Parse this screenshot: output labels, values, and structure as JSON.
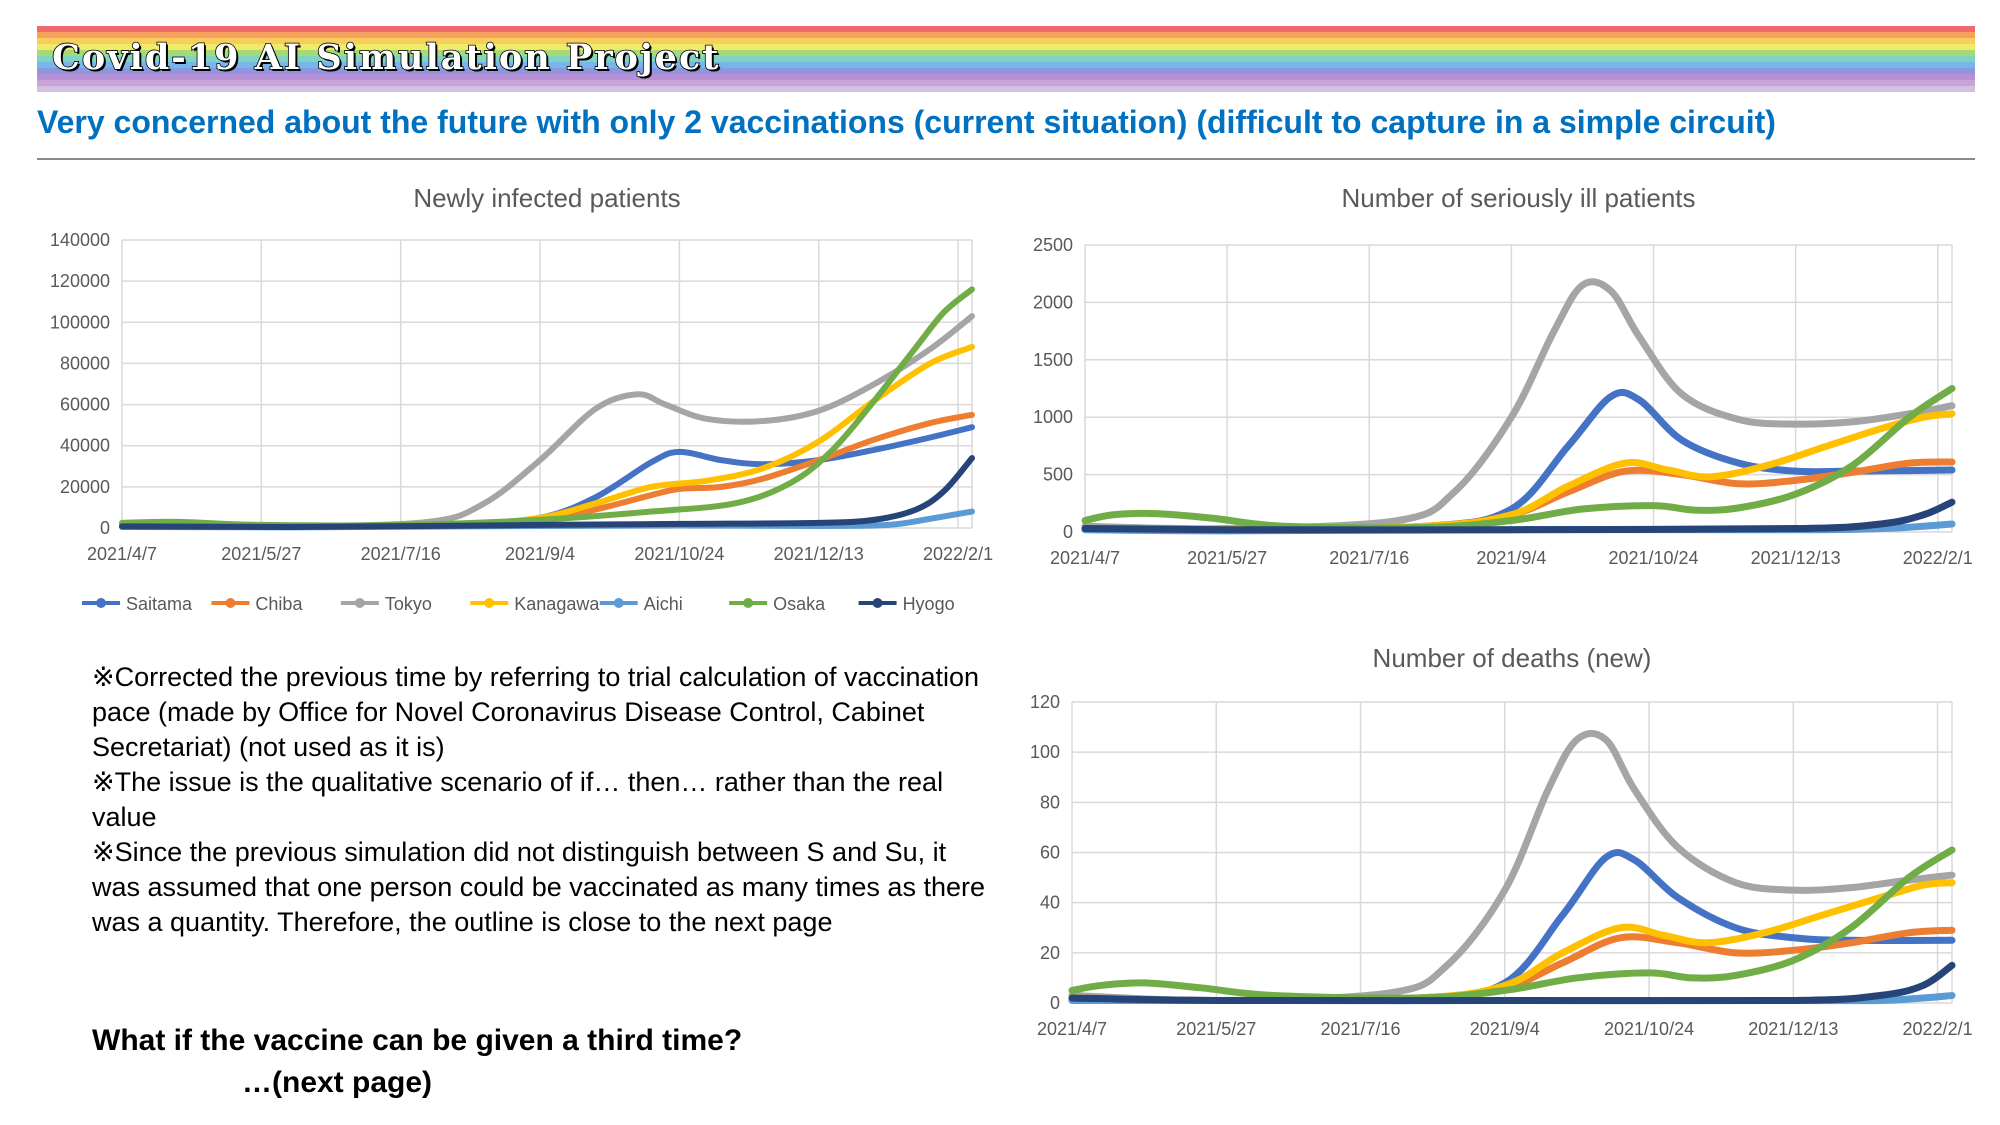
{
  "page": {
    "brand_title": "Covid-19 AI Simulation Project",
    "headline": "Very concerned about the future with only 2 vaccinations (current situation) (difficult to capture in a simple circuit)",
    "headline_color": "#0070c0",
    "rainbow_colors": [
      "#f06b6b",
      "#f6a15e",
      "#f7cd5b",
      "#f1ea68",
      "#a5da74",
      "#7fd3c1",
      "#77b6e8",
      "#8f96e0",
      "#b690d6",
      "#c9a4d8",
      "#d4c0e0"
    ]
  },
  "notes": [
    "※Corrected the previous time by referring to trial calculation of vaccination pace (made by Office for Novel Coronavirus Disease Control, Cabinet Secretariat) (not used as it is)",
    "※The issue is the qualitative scenario of if… then… rather than the real value",
    "※Since the previous simulation did not distinguish between S and Su, it was assumed that one person could be vaccinated as many times as there was a quantity. Therefore, the outline is close to the next page"
  ],
  "question": {
    "line1": "What if the vaccine can be given a third time?",
    "line2": "…(next page)"
  },
  "chart_data": [
    {
      "type": "line",
      "title": "Newly infected patients",
      "x_ticks": [
        "2021/4/7",
        "2021/5/27",
        "2021/7/16",
        "2021/9/4",
        "2021/10/24",
        "2021/12/13",
        "2022/2/1"
      ],
      "x_tick_positions": [
        0,
        50,
        100,
        150,
        200,
        250,
        300
      ],
      "x_range": [
        0,
        305
      ],
      "ylim": [
        0,
        140000
      ],
      "y_ticks": [
        0,
        20000,
        40000,
        60000,
        80000,
        100000,
        120000,
        140000
      ],
      "grid": true,
      "legend": "bottom",
      "series": [
        {
          "name": "Saitama",
          "color": "#4472c4",
          "x": [
            0,
            60,
            120,
            150,
            170,
            190,
            200,
            215,
            230,
            250,
            270,
            290,
            305
          ],
          "y": [
            1500,
            1000,
            2000,
            5000,
            15000,
            32000,
            37000,
            33000,
            31000,
            33000,
            38000,
            44000,
            49000
          ]
        },
        {
          "name": "Chiba",
          "color": "#ed7d31",
          "x": [
            0,
            60,
            120,
            150,
            170,
            190,
            200,
            215,
            230,
            250,
            270,
            290,
            305
          ],
          "y": [
            1000,
            800,
            1500,
            3500,
            9000,
            16000,
            19000,
            20000,
            24000,
            33000,
            43000,
            51000,
            55000
          ]
        },
        {
          "name": "Tokyo",
          "color": "#a5a5a5",
          "x": [
            0,
            60,
            110,
            130,
            150,
            170,
            185,
            195,
            210,
            230,
            250,
            270,
            290,
            305
          ],
          "y": [
            2000,
            1000,
            3000,
            12000,
            33000,
            58000,
            65000,
            60000,
            53000,
            52000,
            57000,
            70000,
            87000,
            103000
          ]
        },
        {
          "name": "Kanagawa",
          "color": "#ffc000",
          "x": [
            0,
            60,
            120,
            150,
            170,
            190,
            210,
            230,
            250,
            270,
            290,
            305
          ],
          "y": [
            1500,
            800,
            1500,
            5000,
            12000,
            20000,
            23000,
            29000,
            42000,
            62000,
            80000,
            88000
          ]
        },
        {
          "name": "Aichi",
          "color": "#5b9bd5",
          "x": [
            0,
            60,
            150,
            200,
            250,
            275,
            290,
            305
          ],
          "y": [
            500,
            300,
            1000,
            1200,
            1000,
            1500,
            4500,
            8000
          ]
        },
        {
          "name": "Osaka",
          "color": "#70ad47",
          "x": [
            0,
            20,
            50,
            100,
            150,
            190,
            220,
            240,
            255,
            270,
            285,
            295,
            305
          ],
          "y": [
            2500,
            3000,
            1500,
            1500,
            4000,
            8000,
            12000,
            22000,
            38000,
            62000,
            88000,
            105000,
            116000
          ]
        },
        {
          "name": "Hyogo",
          "color": "#264478",
          "x": [
            0,
            60,
            150,
            200,
            250,
            270,
            285,
            295,
            305
          ],
          "y": [
            800,
            500,
            1500,
            2000,
            2500,
            4000,
            9000,
            18000,
            34000
          ]
        }
      ]
    },
    {
      "type": "line",
      "title": "Number of seriously ill patients",
      "x_ticks": [
        "2021/4/7",
        "2021/5/27",
        "2021/7/16",
        "2021/9/4",
        "2021/10/24",
        "2021/12/13",
        "2022/2/1"
      ],
      "x_tick_positions": [
        0,
        50,
        100,
        150,
        200,
        250,
        300
      ],
      "x_range": [
        0,
        305
      ],
      "ylim": [
        0,
        2500
      ],
      "y_ticks": [
        0,
        500,
        1000,
        1500,
        2000,
        2500
      ],
      "grid": true,
      "legend": "none",
      "series": [
        {
          "name": "Saitama",
          "color": "#4472c4",
          "x": [
            0,
            50,
            120,
            150,
            170,
            185,
            195,
            210,
            230,
            250,
            270,
            305
          ],
          "y": [
            30,
            20,
            50,
            200,
            750,
            1180,
            1150,
            800,
            600,
            530,
            530,
            540
          ]
        },
        {
          "name": "Chiba",
          "color": "#ed7d31",
          "x": [
            0,
            50,
            120,
            150,
            170,
            190,
            210,
            230,
            250,
            270,
            290,
            305
          ],
          "y": [
            30,
            20,
            50,
            150,
            350,
            530,
            500,
            420,
            450,
            520,
            600,
            610
          ]
        },
        {
          "name": "Tokyo",
          "color": "#a5a5a5",
          "x": [
            0,
            50,
            110,
            130,
            150,
            165,
            175,
            185,
            195,
            210,
            230,
            250,
            270,
            290,
            305
          ],
          "y": [
            50,
            30,
            100,
            350,
            1000,
            1750,
            2150,
            2100,
            1700,
            1200,
            980,
            940,
            960,
            1030,
            1100
          ]
        },
        {
          "name": "Kanagawa",
          "color": "#ffc000",
          "x": [
            0,
            50,
            120,
            150,
            170,
            190,
            205,
            220,
            240,
            260,
            280,
            295,
            305
          ],
          "y": [
            30,
            20,
            50,
            150,
            400,
            600,
            540,
            480,
            580,
            740,
            900,
            1000,
            1030
          ]
        },
        {
          "name": "Aichi",
          "color": "#5b9bd5",
          "x": [
            0,
            50,
            150,
            250,
            280,
            295,
            305
          ],
          "y": [
            20,
            10,
            20,
            20,
            30,
            50,
            70
          ]
        },
        {
          "name": "Osaka",
          "color": "#70ad47",
          "x": [
            0,
            10,
            25,
            45,
            70,
            120,
            150,
            175,
            200,
            215,
            230,
            250,
            270,
            290,
            305
          ],
          "y": [
            100,
            150,
            160,
            120,
            50,
            40,
            100,
            200,
            230,
            190,
            210,
            330,
            580,
            1000,
            1250
          ]
        },
        {
          "name": "Hyogo",
          "color": "#264478",
          "x": [
            0,
            50,
            150,
            250,
            280,
            295,
            305
          ],
          "y": [
            30,
            20,
            20,
            30,
            70,
            150,
            260
          ]
        }
      ]
    },
    {
      "type": "line",
      "title": "Number of deaths (new)",
      "x_ticks": [
        "2021/4/7",
        "2021/5/27",
        "2021/7/16",
        "2021/9/4",
        "2021/10/24",
        "2021/12/13",
        "2022/2/1"
      ],
      "x_tick_positions": [
        0,
        50,
        100,
        150,
        200,
        250,
        300
      ],
      "x_range": [
        0,
        305
      ],
      "ylim": [
        0,
        120
      ],
      "y_ticks": [
        0,
        20,
        40,
        60,
        80,
        100,
        120
      ],
      "grid": true,
      "legend": "none",
      "series": [
        {
          "name": "Saitama",
          "color": "#4472c4",
          "x": [
            0,
            50,
            120,
            150,
            170,
            185,
            195,
            210,
            230,
            250,
            270,
            305
          ],
          "y": [
            2,
            1,
            2,
            8,
            35,
            58,
            57,
            42,
            30,
            26,
            25,
            25
          ]
        },
        {
          "name": "Chiba",
          "color": "#ed7d31",
          "x": [
            0,
            50,
            120,
            150,
            170,
            190,
            210,
            230,
            250,
            270,
            290,
            305
          ],
          "y": [
            2,
            1,
            2,
            6,
            16,
            26,
            24,
            20,
            21,
            24,
            28,
            29
          ]
        },
        {
          "name": "Tokyo",
          "color": "#a5a5a5",
          "x": [
            0,
            50,
            110,
            130,
            150,
            165,
            175,
            185,
            195,
            210,
            230,
            250,
            270,
            290,
            305
          ],
          "y": [
            3,
            1,
            4,
            15,
            45,
            85,
            105,
            105,
            85,
            62,
            48,
            45,
            46,
            49,
            51
          ]
        },
        {
          "name": "Kanagawa",
          "color": "#ffc000",
          "x": [
            0,
            50,
            120,
            150,
            170,
            190,
            205,
            220,
            240,
            260,
            280,
            295,
            305
          ],
          "y": [
            2,
            1,
            2,
            7,
            20,
            30,
            27,
            24,
            28,
            35,
            42,
            47,
            48
          ]
        },
        {
          "name": "Aichi",
          "color": "#5b9bd5",
          "x": [
            0,
            50,
            150,
            250,
            280,
            295,
            305
          ],
          "y": [
            1,
            1,
            1,
            1,
            1,
            2,
            3
          ]
        },
        {
          "name": "Osaka",
          "color": "#70ad47",
          "x": [
            0,
            10,
            25,
            45,
            70,
            120,
            150,
            175,
            200,
            215,
            230,
            250,
            270,
            290,
            305
          ],
          "y": [
            5,
            7,
            8,
            6,
            3,
            2,
            5,
            10,
            12,
            10,
            11,
            17,
            30,
            50,
            61
          ]
        },
        {
          "name": "Hyogo",
          "color": "#264478",
          "x": [
            0,
            50,
            150,
            250,
            280,
            295,
            305
          ],
          "y": [
            2,
            1,
            1,
            1,
            3,
            7,
            15
          ]
        }
      ]
    }
  ]
}
